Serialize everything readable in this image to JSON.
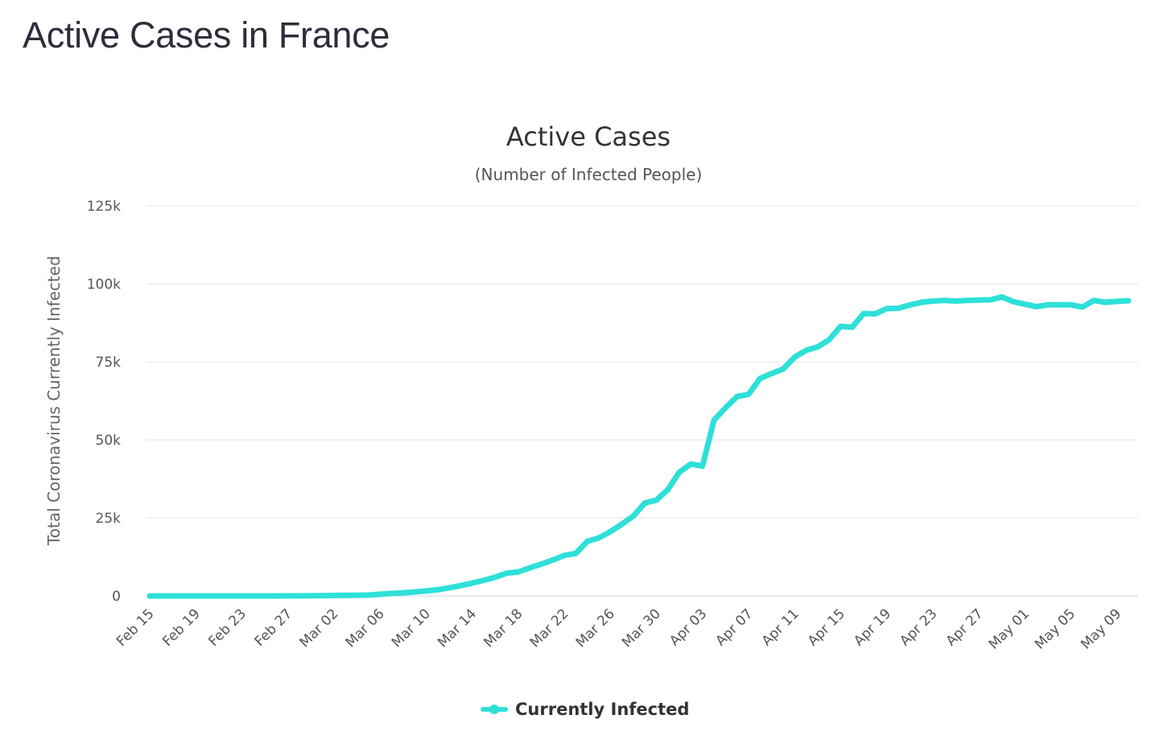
{
  "page": {
    "heading": "Active Cases in France"
  },
  "chart_data": {
    "type": "line",
    "title": "Active Cases",
    "subtitle": "(Number of Infected People)",
    "ylabel": "Total Coronavirus Currently Infected",
    "xlabel": "",
    "ylim": [
      0,
      125000
    ],
    "y_ticks": [
      {
        "value": 0,
        "label": "0"
      },
      {
        "value": 25000,
        "label": "25k"
      },
      {
        "value": 50000,
        "label": "50k"
      },
      {
        "value": 75000,
        "label": "75k"
      },
      {
        "value": 100000,
        "label": "100k"
      },
      {
        "value": 125000,
        "label": "125k"
      }
    ],
    "x_tick_labels": [
      "Feb 15",
      "Feb 19",
      "Feb 23",
      "Feb 27",
      "Mar 02",
      "Mar 06",
      "Mar 10",
      "Mar 14",
      "Mar 18",
      "Mar 22",
      "Mar 26",
      "Mar 30",
      "Apr 03",
      "Apr 07",
      "Apr 11",
      "Apr 15",
      "Apr 19",
      "Apr 23",
      "Apr 27",
      "May 01",
      "May 05",
      "May 09"
    ],
    "grid": true,
    "legend_position": "bottom-center",
    "x": [
      "Feb 15",
      "Feb 16",
      "Feb 17",
      "Feb 18",
      "Feb 19",
      "Feb 20",
      "Feb 21",
      "Feb 22",
      "Feb 23",
      "Feb 24",
      "Feb 25",
      "Feb 26",
      "Feb 27",
      "Feb 28",
      "Feb 29",
      "Mar 01",
      "Mar 02",
      "Mar 03",
      "Mar 04",
      "Mar 05",
      "Mar 06",
      "Mar 07",
      "Mar 08",
      "Mar 09",
      "Mar 10",
      "Mar 11",
      "Mar 12",
      "Mar 13",
      "Mar 14",
      "Mar 15",
      "Mar 16",
      "Mar 17",
      "Mar 18",
      "Mar 19",
      "Mar 20",
      "Mar 21",
      "Mar 22",
      "Mar 23",
      "Mar 24",
      "Mar 25",
      "Mar 26",
      "Mar 27",
      "Mar 28",
      "Mar 29",
      "Mar 30",
      "Mar 31",
      "Apr 01",
      "Apr 02",
      "Apr 03",
      "Apr 04",
      "Apr 05",
      "Apr 06",
      "Apr 07",
      "Apr 08",
      "Apr 09",
      "Apr 10",
      "Apr 11",
      "Apr 12",
      "Apr 13",
      "Apr 14",
      "Apr 15",
      "Apr 16",
      "Apr 17",
      "Apr 18",
      "Apr 19",
      "Apr 20",
      "Apr 21",
      "Apr 22",
      "Apr 23",
      "Apr 24",
      "Apr 25",
      "Apr 26",
      "Apr 27",
      "Apr 28",
      "Apr 29",
      "Apr 30",
      "May 01",
      "May 02",
      "May 03",
      "May 04",
      "May 05",
      "May 06",
      "May 07",
      "May 08",
      "May 09",
      "May 10"
    ],
    "series": [
      {
        "name": "Currently Infected",
        "color": "#2ee0d8",
        "values": [
          7,
          7,
          7,
          7,
          7,
          7,
          7,
          7,
          7,
          7,
          7,
          7,
          20,
          35,
          75,
          110,
          150,
          180,
          220,
          280,
          550,
          800,
          1000,
          1300,
          1600,
          2000,
          2600,
          3300,
          4100,
          5000,
          6000,
          7300,
          7700,
          9000,
          10200,
          11500,
          13000,
          13600,
          17500,
          18600,
          20600,
          23000,
          25600,
          29800,
          30700,
          34100,
          39700,
          42300,
          41600,
          56300,
          60300,
          63900,
          64600,
          69700,
          71300,
          72700,
          76500,
          78700,
          79800,
          82100,
          86400,
          86100,
          90500,
          90400,
          92100,
          92200,
          93200,
          94100,
          94500,
          94700,
          94500,
          94700,
          94800,
          94900,
          95800,
          94300,
          93500,
          92700,
          93300,
          93300,
          93300,
          92600,
          94700,
          94100,
          94400,
          94600
        ]
      }
    ]
  }
}
